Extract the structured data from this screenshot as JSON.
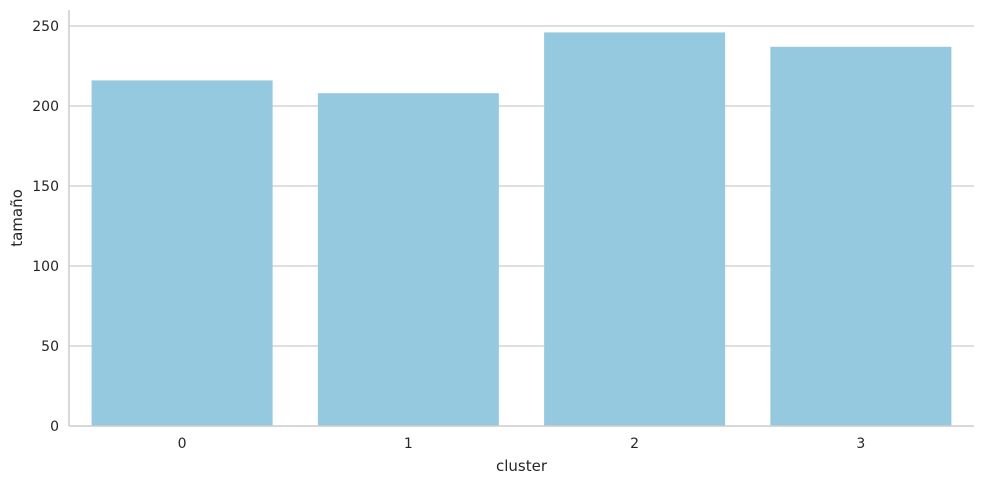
{
  "chart_data": {
    "type": "bar",
    "title": "",
    "xlabel": "cluster",
    "ylabel": "tamaño",
    "categories": [
      "0",
      "1",
      "2",
      "3"
    ],
    "values": [
      216,
      208,
      246,
      237
    ],
    "ylim": [
      0,
      260
    ],
    "yticks": [
      0,
      50,
      100,
      150,
      200,
      250
    ],
    "ytick_labels": [
      "0",
      "50",
      "100",
      "150",
      "200",
      "250"
    ],
    "grid": "y",
    "legend": "none",
    "bar_color": "#95c9df",
    "grid_color": "#cccccc",
    "axis_color": "#cccccc",
    "text_color": "#262626"
  }
}
